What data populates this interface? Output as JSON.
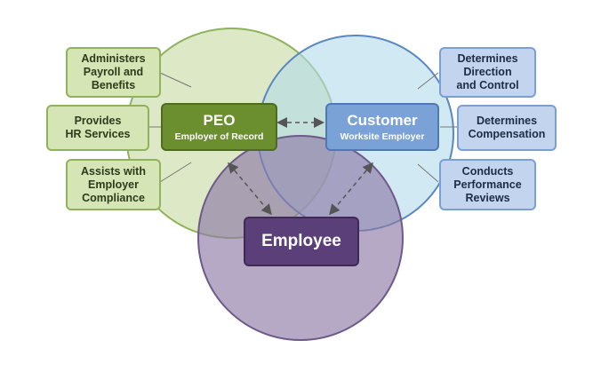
{
  "diagram": {
    "peo": {
      "title": "PEO",
      "subtitle": "Employer of Record"
    },
    "customer": {
      "title": "Customer",
      "subtitle": "Worksite Employer"
    },
    "employee": {
      "title": "Employee"
    },
    "peo_roles": [
      {
        "lines": [
          "Administers",
          "Payroll and",
          "Benefits"
        ]
      },
      {
        "lines": [
          "Provides",
          "HR Services"
        ]
      },
      {
        "lines": [
          "Assists with",
          "Employer",
          "Compliance"
        ]
      }
    ],
    "customer_roles": [
      {
        "lines": [
          "Determines",
          "Direction",
          "and Control"
        ]
      },
      {
        "lines": [
          "Determines",
          "Compensation"
        ]
      },
      {
        "lines": [
          "Conducts",
          "Performance",
          "Reviews"
        ]
      }
    ]
  },
  "colors": {
    "peo_circle": "#c5d9a0",
    "customer_circle": "#b3dbe9",
    "employee_circle": "#8e7ba8",
    "peo_box": "#6b8e2e",
    "customer_box": "#7aa2d6",
    "employee_box": "#5b3f78",
    "arrow": "#555555"
  }
}
